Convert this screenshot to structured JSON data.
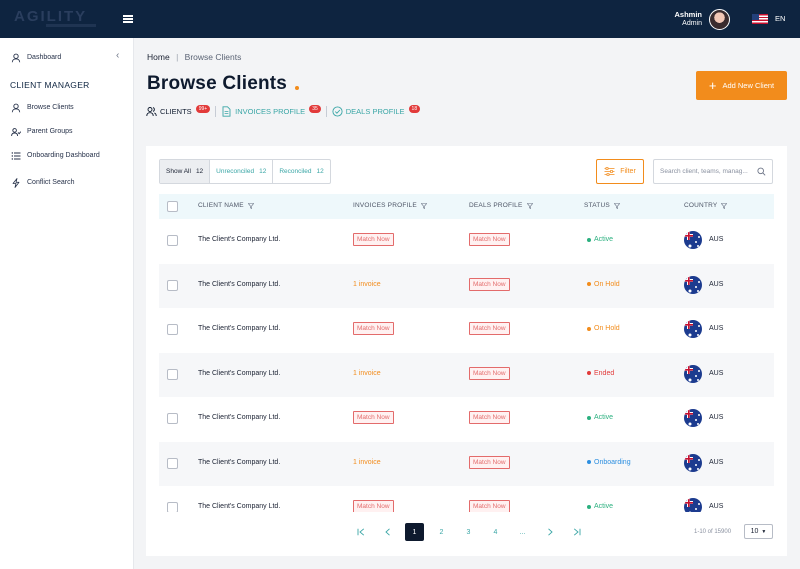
{
  "app": {
    "logo": "AGILITY"
  },
  "user": {
    "name": "Ashmin",
    "role": "Admin",
    "language": "EN"
  },
  "sidebar": {
    "dashboard_label": "Dashboard",
    "section_title": "CLIENT MANAGER",
    "items": [
      {
        "label": "Browse Clients",
        "icon": "user-icon"
      },
      {
        "label": "Parent Groups",
        "icon": "users-icon"
      },
      {
        "label": "Onboarding Dashboard",
        "icon": "list-icon"
      },
      {
        "label": "Conflict Search",
        "icon": "bolt-icon"
      }
    ]
  },
  "breadcrumb": {
    "home": "Home",
    "separator": "|",
    "current": "Browse Clients"
  },
  "page": {
    "title": "Browse Clients",
    "add_button": "Add New Client"
  },
  "tabs": [
    {
      "label": "CLIENTS",
      "badge": "99+"
    },
    {
      "label": "INVOICES PROFILE",
      "badge": "35"
    },
    {
      "label": "DEALS PROFILE",
      "badge": "18"
    }
  ],
  "filters": {
    "segments": [
      {
        "label": "Show All",
        "count": "12"
      },
      {
        "label": "Unreconciled",
        "count": "12"
      },
      {
        "label": "Reconciled",
        "count": "12"
      }
    ],
    "filter_label": "Filter",
    "search_placeholder": "Search client, teams, manag..."
  },
  "table": {
    "columns": [
      "CLIENT NAME",
      "INVOICES PROFILE",
      "DEALS PROFILE",
      "STATUS",
      "COUNTRY"
    ],
    "rows": [
      {
        "name": "The Client's Company Ltd.",
        "invoices": "Match Now",
        "deals": "Match Now",
        "status": "Active",
        "country": "AUS"
      },
      {
        "name": "The Client's Company Ltd.",
        "invoices": "1 invoice",
        "deals": "Match Now",
        "status": "On Hold",
        "country": "AUS"
      },
      {
        "name": "The Client's Company Ltd.",
        "invoices": "Match Now",
        "deals": "Match Now",
        "status": "On Hold",
        "country": "AUS"
      },
      {
        "name": "The Client's Company Ltd.",
        "invoices": "1 invoice",
        "deals": "Match Now",
        "status": "Ended",
        "country": "AUS"
      },
      {
        "name": "The Client's Company Ltd.",
        "invoices": "Match Now",
        "deals": "Match Now",
        "status": "Active",
        "country": "AUS"
      },
      {
        "name": "The Client's Company Ltd.",
        "invoices": "1 invoice",
        "deals": "Match Now",
        "status": "Onboarding",
        "country": "AUS"
      },
      {
        "name": "The Client's Company Ltd.",
        "invoices": "Match Now",
        "deals": "Match Now",
        "status": "Active",
        "country": "AUS"
      }
    ]
  },
  "status_colors": {
    "Active": "#2bb07f",
    "On Hold": "#f28c1c",
    "Ended": "#e23a3a",
    "Onboarding": "#2d8fe0"
  },
  "pagination": {
    "pages": [
      "1",
      "2",
      "3",
      "4",
      "..."
    ],
    "current": "1",
    "range_text": "1-10 of 15900",
    "per_page": "10"
  },
  "colors": {
    "accent": "#f28c1c",
    "navy": "#0e2440",
    "teal": "#3aa6a6"
  }
}
